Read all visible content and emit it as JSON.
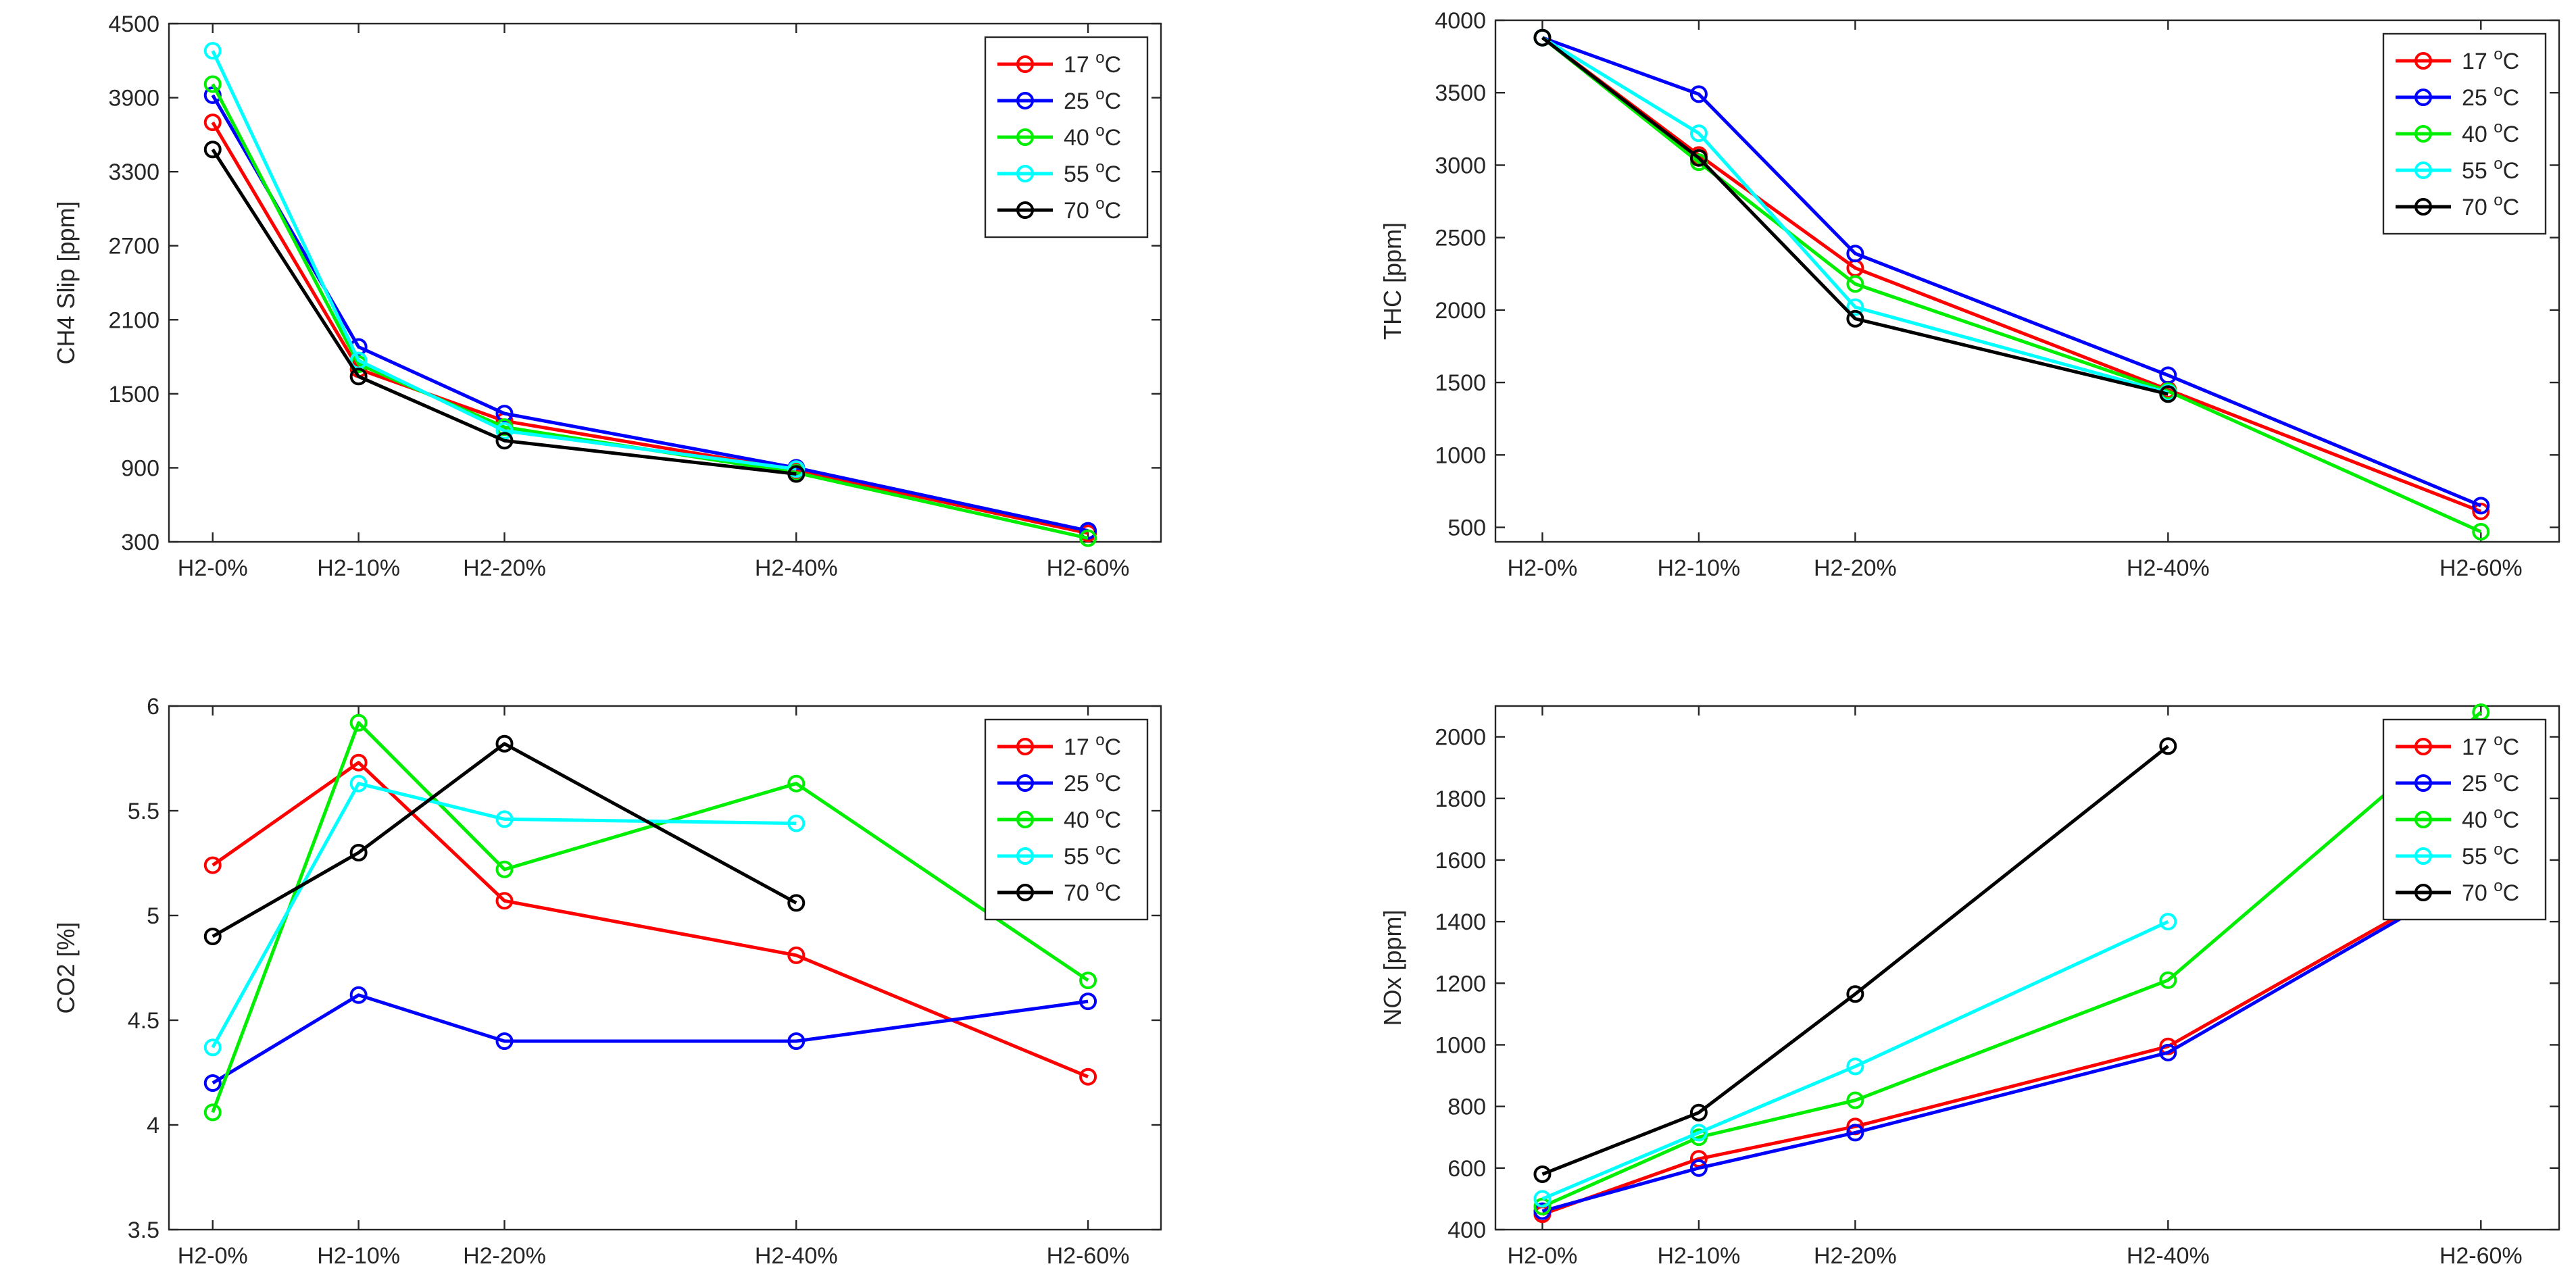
{
  "chart_data": [
    {
      "type": "line",
      "ylabel": "CH4 Slip [ppm]",
      "categories": [
        "H2-0%",
        "H2-10%",
        "H2-20%",
        "H2-40%",
        "H2-60%"
      ],
      "x": [
        0,
        10,
        20,
        40,
        60
      ],
      "xlim": [
        -3,
        65
      ],
      "ylim": [
        300,
        4500
      ],
      "yticks": [
        300,
        900,
        1500,
        2100,
        2700,
        3300,
        3900,
        4500
      ],
      "grid": false,
      "legend_position": "top-right",
      "series": [
        {
          "name": "17 °C",
          "color": "#ff0000",
          "values": [
            3700,
            1700,
            1280,
            880,
            370
          ]
        },
        {
          "name": "25 °C",
          "color": "#0000ff",
          "values": [
            3920,
            1880,
            1340,
            900,
            390
          ]
        },
        {
          "name": "40 °C",
          "color": "#00ee00",
          "values": [
            4010,
            1740,
            1230,
            860,
            330
          ]
        },
        {
          "name": "55 °C",
          "color": "#00ffff",
          "values": [
            4280,
            1770,
            1200,
            890,
            null
          ]
        },
        {
          "name": "70 °C",
          "color": "#000000",
          "values": [
            3480,
            1640,
            1120,
            850,
            null
          ]
        }
      ]
    },
    {
      "type": "line",
      "ylabel": "THC [ppm]",
      "categories": [
        "H2-0%",
        "H2-10%",
        "H2-20%",
        "H2-40%",
        "H2-60%"
      ],
      "x": [
        0,
        10,
        20,
        40,
        60
      ],
      "xlim": [
        -3,
        65
      ],
      "ylim": [
        400,
        4000
      ],
      "yticks": [
        500,
        1000,
        1500,
        2000,
        2500,
        3000,
        3500,
        4000
      ],
      "grid": false,
      "legend_position": "top-right",
      "series": [
        {
          "name": "17 °C",
          "color": "#ff0000",
          "values": [
            3880,
            3070,
            2290,
            1450,
            610
          ]
        },
        {
          "name": "25 °C",
          "color": "#0000ff",
          "values": [
            3880,
            3490,
            2390,
            1550,
            650
          ]
        },
        {
          "name": "40 °C",
          "color": "#00ee00",
          "values": [
            3880,
            3020,
            2180,
            1440,
            470
          ]
        },
        {
          "name": "55 °C",
          "color": "#00ffff",
          "values": [
            3880,
            3220,
            2020,
            1430,
            null
          ]
        },
        {
          "name": "70 °C",
          "color": "#000000",
          "values": [
            3880,
            3050,
            1940,
            1420,
            null
          ]
        }
      ]
    },
    {
      "type": "line",
      "ylabel": "CO2 [%]",
      "categories": [
        "H2-0%",
        "H2-10%",
        "H2-20%",
        "H2-40%",
        "H2-60%"
      ],
      "x": [
        0,
        10,
        20,
        40,
        60
      ],
      "xlim": [
        -3,
        65
      ],
      "ylim": [
        3.5,
        6
      ],
      "yticks": [
        3.5,
        4,
        4.5,
        5,
        5.5,
        6
      ],
      "grid": false,
      "legend_position": "top-right",
      "series": [
        {
          "name": "17 °C",
          "color": "#ff0000",
          "values": [
            5.24,
            5.73,
            5.07,
            4.81,
            4.23
          ]
        },
        {
          "name": "25 °C",
          "color": "#0000ff",
          "values": [
            4.2,
            4.62,
            4.4,
            4.4,
            4.59
          ]
        },
        {
          "name": "40 °C",
          "color": "#00ee00",
          "values": [
            4.06,
            5.92,
            5.22,
            5.63,
            4.69
          ]
        },
        {
          "name": "55 °C",
          "color": "#00ffff",
          "values": [
            4.37,
            5.63,
            5.46,
            5.44,
            null
          ]
        },
        {
          "name": "70 °C",
          "color": "#000000",
          "values": [
            4.9,
            5.3,
            5.82,
            5.06,
            null
          ]
        }
      ]
    },
    {
      "type": "line",
      "ylabel": "NOx [ppm]",
      "categories": [
        "H2-0%",
        "H2-10%",
        "H2-20%",
        "H2-40%",
        "H2-60%"
      ],
      "x": [
        0,
        10,
        20,
        40,
        60
      ],
      "xlim": [
        -3,
        65
      ],
      "ylim": [
        400,
        2100
      ],
      "yticks": [
        400,
        600,
        800,
        1000,
        1200,
        1400,
        1600,
        1800,
        2000
      ],
      "grid": false,
      "legend_position": "top-right",
      "series": [
        {
          "name": "17 °C",
          "color": "#ff0000",
          "values": [
            450,
            630,
            735,
            995,
            1570
          ]
        },
        {
          "name": "25 °C",
          "color": "#0000ff",
          "values": [
            460,
            600,
            715,
            975,
            1560
          ]
        },
        {
          "name": "40 °C",
          "color": "#00ee00",
          "values": [
            475,
            700,
            820,
            1210,
            2080
          ]
        },
        {
          "name": "55 °C",
          "color": "#00ffff",
          "values": [
            500,
            715,
            930,
            1400,
            null
          ]
        },
        {
          "name": "70 °C",
          "color": "#000000",
          "values": [
            580,
            780,
            1165,
            1970,
            null
          ]
        }
      ]
    }
  ]
}
